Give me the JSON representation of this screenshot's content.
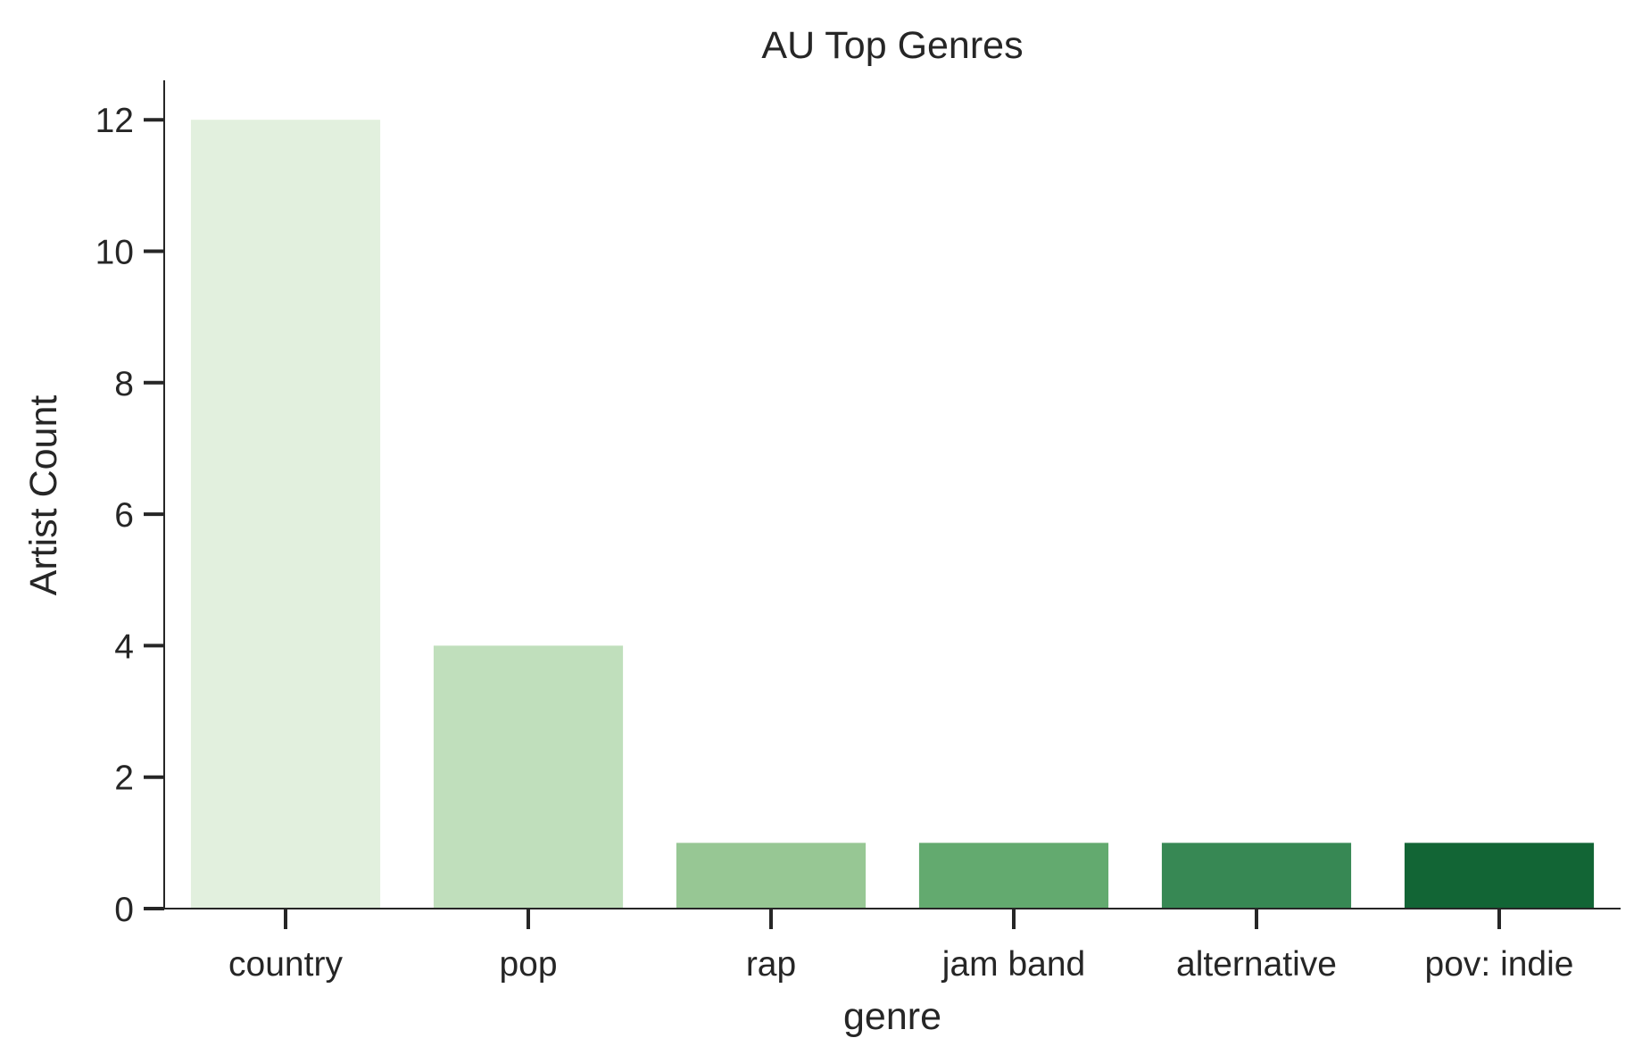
{
  "chart_data": {
    "type": "bar",
    "title": "AU Top Genres",
    "xlabel": "genre",
    "ylabel": "Artist Count",
    "categories": [
      "country",
      "pop",
      "rap",
      "jam band",
      "alternative",
      "pov: indie"
    ],
    "values": [
      12,
      4,
      1,
      1,
      1,
      1
    ],
    "colors": [
      "#e2f0de",
      "#c0dfbc",
      "#97c794",
      "#63aa6f",
      "#378854",
      "#126535"
    ],
    "yticks": [
      0,
      2,
      4,
      6,
      8,
      10,
      12
    ],
    "ylim": [
      0,
      12.6
    ],
    "grid": false,
    "legend": "none"
  }
}
